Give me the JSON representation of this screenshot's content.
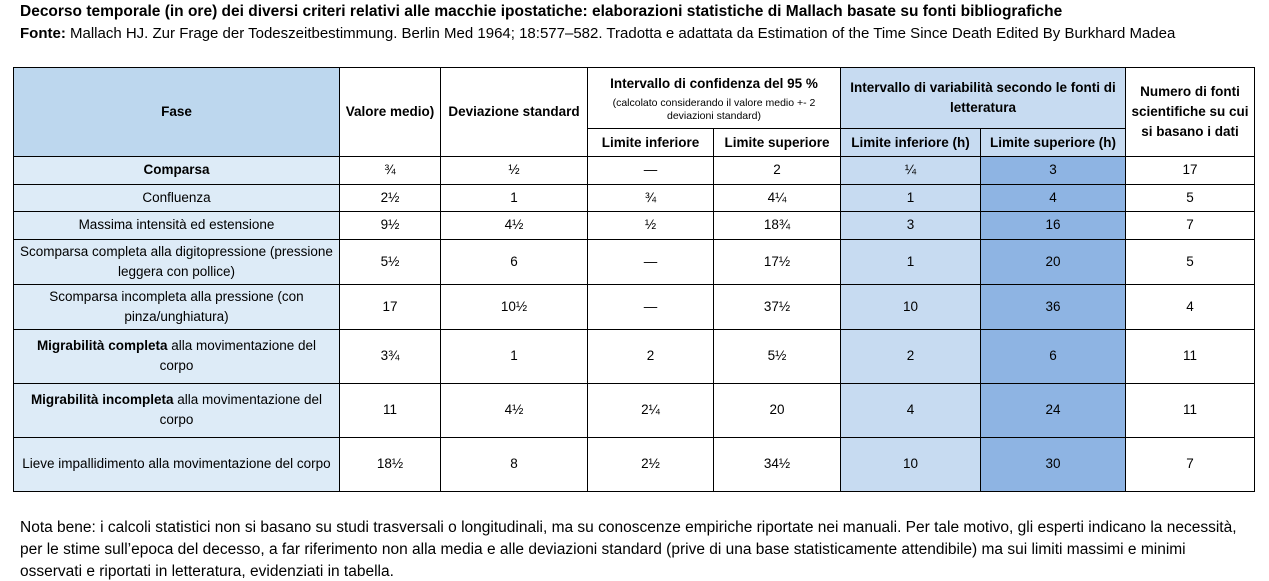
{
  "title": "Decorso temporale (in ore) dei diversi criteri relativi alle macchie ipostatiche: elaborazioni statistiche di Mallach basate su fonti bibliografiche",
  "source": {
    "label": "Fonte:",
    "text": "Mallach HJ. Zur Frage der Todeszeitbestimmung. Berlin Med 1964; 18:577–582. Tradotta e adattata da Estimation of the Time Since Death Edited By Burkhard Madea"
  },
  "table": {
    "headers": {
      "fase": "Fase",
      "mean": "Valore medio)",
      "sd": "Deviazione standard",
      "ci_title": "Intervallo di confidenza del 95 %",
      "ci_note": "(calcolato considerando il valore medio +- 2 deviazioni standard)",
      "ci_lower": "Limite inferiore",
      "ci_upper": "Limite superiore",
      "var_title": "Intervallo di variabilità secondo le fonti di letteratura",
      "var_lower": "Limite inferiore (h)",
      "var_upper": "Limite superiore (h)",
      "n_sources": "Numero di fonti scientifiche su cui si basano i dati"
    },
    "rows": [
      {
        "fase_bold": "Comparsa",
        "fase_rest": "",
        "mean": "¾",
        "sd": "½",
        "ci_lower": "—",
        "ci_upper": "2",
        "var_lower": "¼",
        "var_upper": "3",
        "n": "17"
      },
      {
        "fase_bold": "",
        "fase_rest": "Confluenza",
        "mean": "2½",
        "sd": "1",
        "ci_lower": "¾",
        "ci_upper": "4¼",
        "var_lower": "1",
        "var_upper": "4",
        "n": "5"
      },
      {
        "fase_bold": "",
        "fase_rest": "Massima intensità ed estensione",
        "mean": "9½",
        "sd": "4½",
        "ci_lower": "½",
        "ci_upper": "18¾",
        "var_lower": "3",
        "var_upper": "16",
        "n": "7"
      },
      {
        "fase_bold": "",
        "fase_rest": "Scomparsa completa alla digitopressione (pressione leggera con pollice)",
        "mean": "5½",
        "sd": "6",
        "ci_lower": "—",
        "ci_upper": "17½",
        "var_lower": "1",
        "var_upper": "20",
        "n": "5"
      },
      {
        "fase_bold": "",
        "fase_rest": "Scomparsa incompleta alla pressione (con pinza/unghiatura)",
        "mean": "17",
        "sd": "10½",
        "ci_lower": "—",
        "ci_upper": "37½",
        "var_lower": "10",
        "var_upper": "36",
        "n": "4"
      },
      {
        "fase_bold": "Migrabilità completa",
        "fase_rest": " alla movimentazione del corpo",
        "mean": "3¾",
        "sd": "1",
        "ci_lower": "2",
        "ci_upper": "5½",
        "var_lower": "2",
        "var_upper": "6",
        "n": "11"
      },
      {
        "fase_bold": "Migrabilità incompleta",
        "fase_rest": " alla movimentazione del corpo",
        "mean": "11",
        "sd": "4½",
        "ci_lower": "2¼",
        "ci_upper": "20",
        "var_lower": "4",
        "var_upper": "24",
        "n": "11"
      },
      {
        "fase_bold": "",
        "fase_rest": "Lieve impallidimento alla movimentazione del corpo",
        "mean": "18½",
        "sd": "8",
        "ci_lower": "2½",
        "ci_upper": "34½",
        "var_lower": "10",
        "var_upper": "30",
        "n": "7"
      }
    ]
  },
  "note": "Nota bene: i calcoli statistici non si basano su studi trasversali o longitudinali, ma su conoscenze empiriche riportate nei manuali. Per tale motivo, gli esperti indicano la necessità, per le stime sull’epoca del decesso, a far riferimento non alla media e alle deviazioni standard (prive di una base statisticamente attendibile) ma sui limiti massimi e minimi osservati e riportati in letteratura, evidenziati in tabella.",
  "colors": {
    "fase_bg": "#ddebf7",
    "header_bg": "#bdd7ee",
    "lower_bg": "#c7dbf1",
    "upper_bg": "#8eb4e3",
    "spell_underline": "#c00000"
  }
}
